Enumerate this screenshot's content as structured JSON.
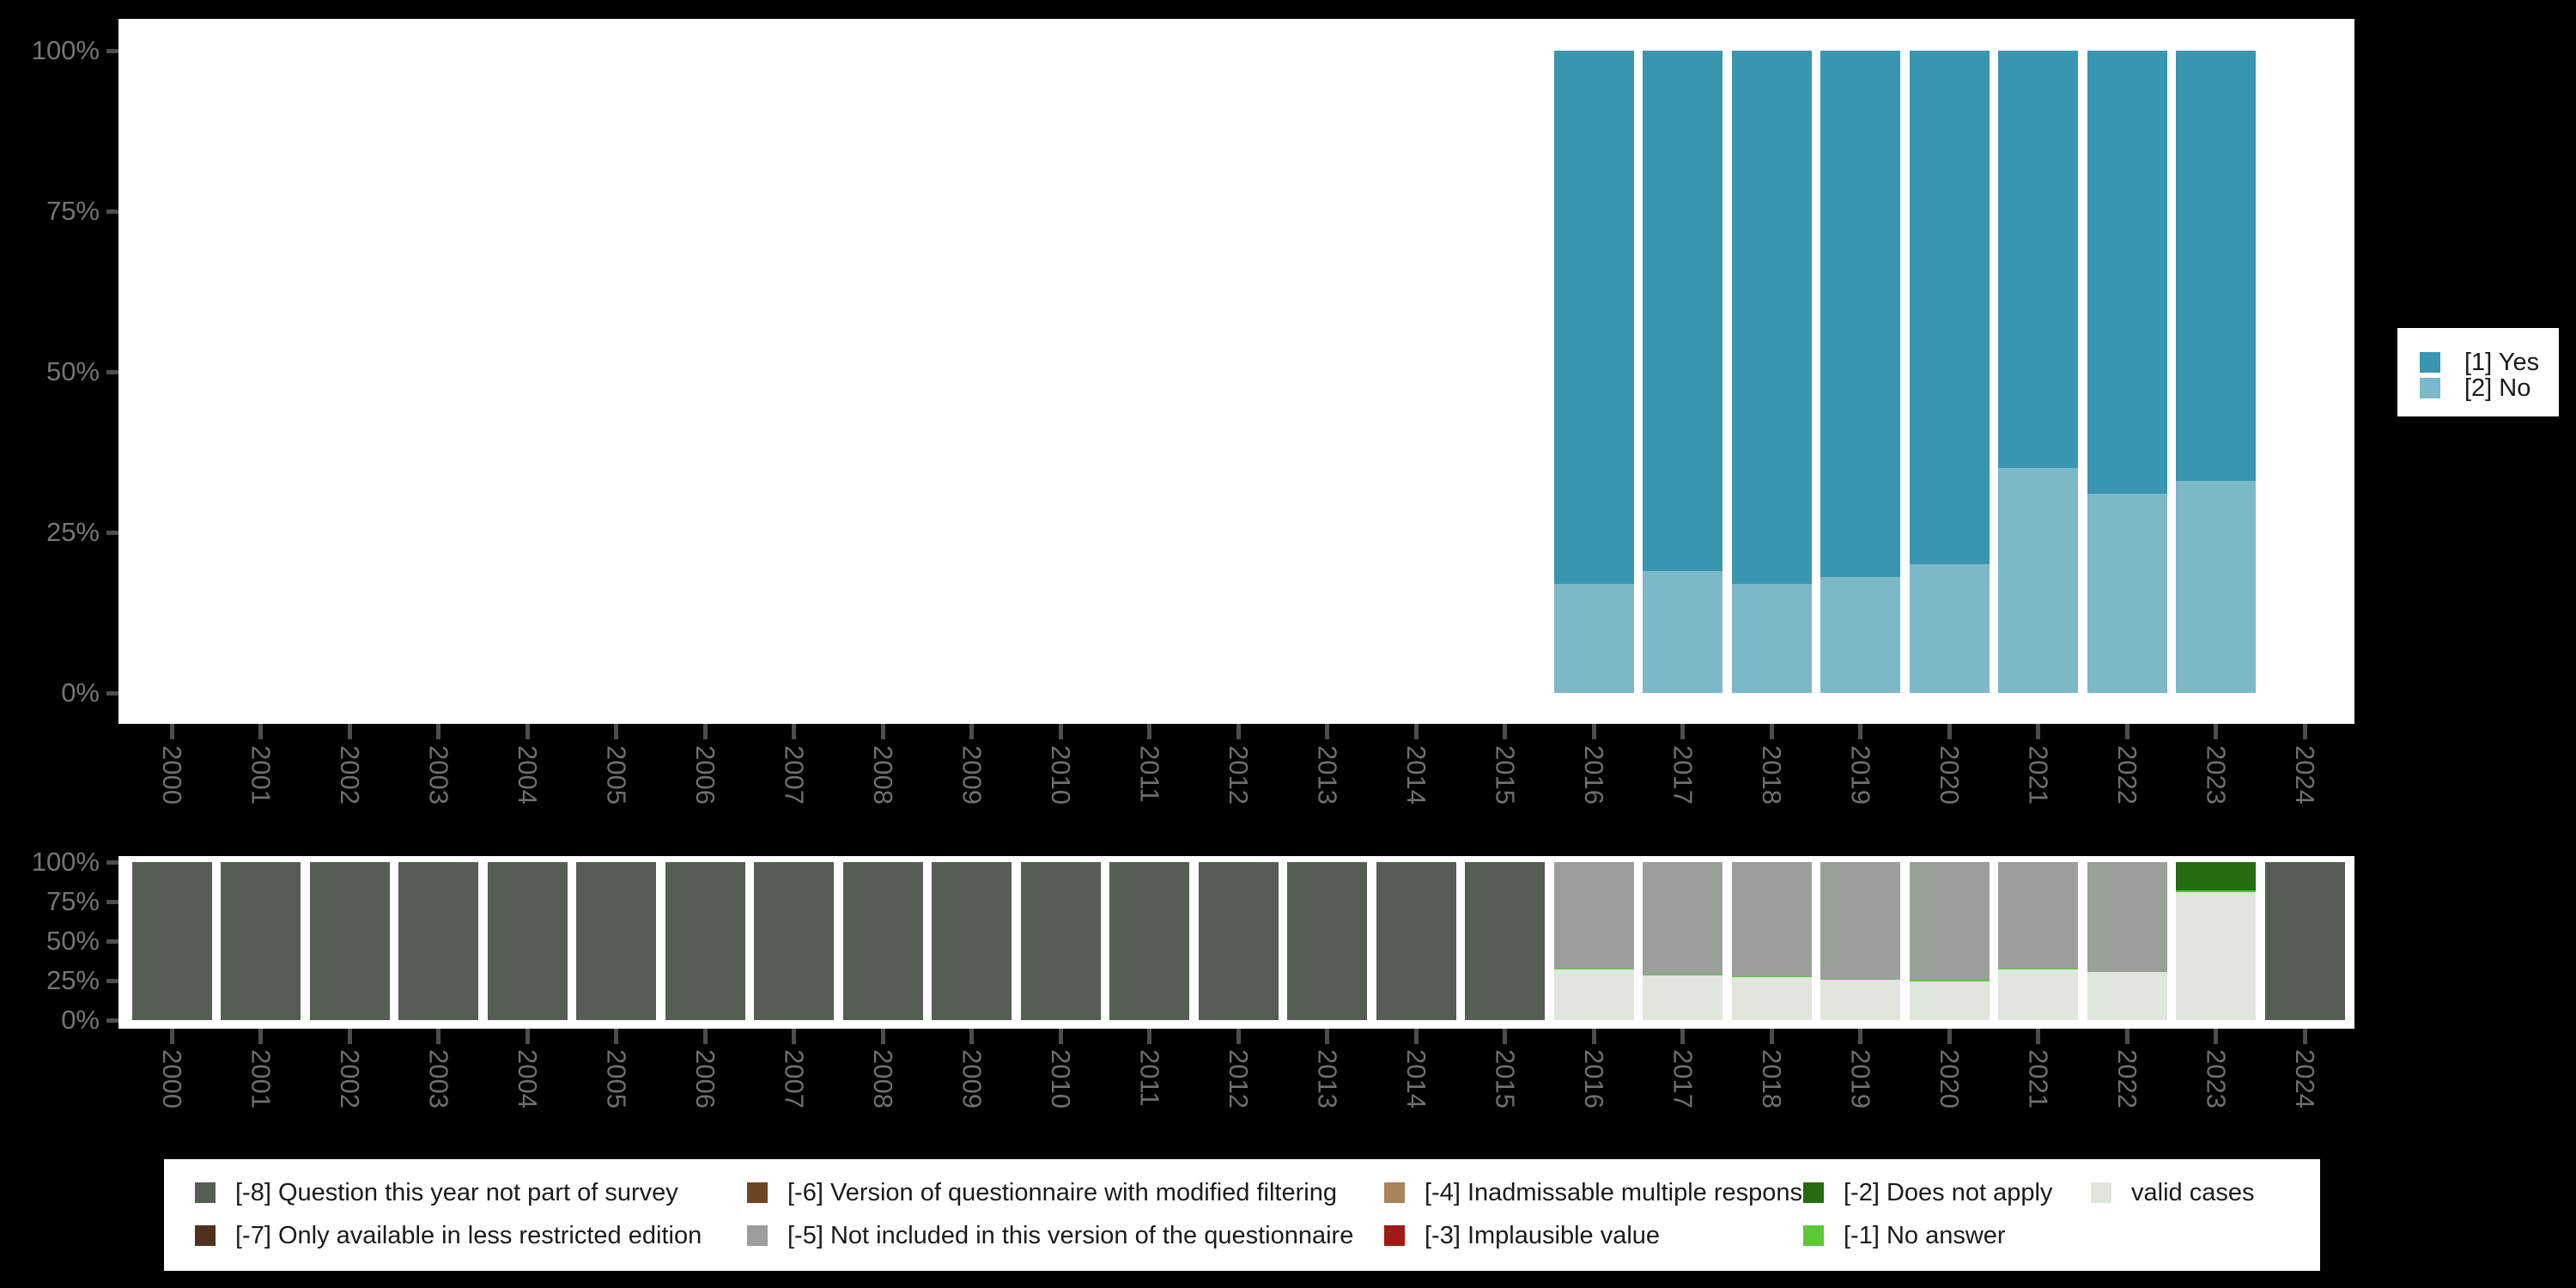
{
  "background_color": "#000000",
  "panel_color": "#ffffff",
  "axis": {
    "tick_color": "#4d4d4d",
    "y_label_color": "#757575",
    "x_label_color": "#6f6f6f"
  },
  "chart_data": [
    {
      "type": "bar",
      "stacked": true,
      "percent_axis": true,
      "title": "",
      "xlabel": "",
      "ylabel": "",
      "ylim": [
        0,
        100
      ],
      "grid": false,
      "legend_position": "right",
      "categories": [
        "2000",
        "2001",
        "2002",
        "2003",
        "2004",
        "2005",
        "2006",
        "2007",
        "2008",
        "2009",
        "2010",
        "2011",
        "2012",
        "2013",
        "2014",
        "2015",
        "2016",
        "2017",
        "2018",
        "2019",
        "2020",
        "2021",
        "2022",
        "2023",
        "2024"
      ],
      "y_ticks": [
        {
          "label": "0%",
          "value": 0
        },
        {
          "label": "25%",
          "value": 25
        },
        {
          "label": "50%",
          "value": 50
        },
        {
          "label": "75%",
          "value": 75
        },
        {
          "label": "100%",
          "value": 100
        }
      ],
      "series": [
        {
          "name": "[2] No",
          "color": "#7cb8c8",
          "values": [
            null,
            null,
            null,
            null,
            null,
            null,
            null,
            null,
            null,
            null,
            null,
            null,
            null,
            null,
            null,
            null,
            17,
            19,
            17,
            18,
            20,
            35,
            31,
            33,
            null
          ]
        },
        {
          "name": "[1] Yes",
          "color": "#3896b1",
          "values": [
            null,
            null,
            null,
            null,
            null,
            null,
            null,
            null,
            null,
            null,
            null,
            null,
            null,
            null,
            null,
            null,
            83,
            81,
            83,
            82,
            80,
            65,
            69,
            67,
            null
          ]
        }
      ]
    },
    {
      "type": "bar",
      "stacked": true,
      "percent_axis": true,
      "title": "",
      "xlabel": "",
      "ylabel": "",
      "ylim": [
        0,
        100
      ],
      "grid": false,
      "legend_position": "bottom",
      "categories": [
        "2000",
        "2001",
        "2002",
        "2003",
        "2004",
        "2005",
        "2006",
        "2007",
        "2008",
        "2009",
        "2010",
        "2011",
        "2012",
        "2013",
        "2014",
        "2015",
        "2016",
        "2017",
        "2018",
        "2019",
        "2020",
        "2021",
        "2022",
        "2023",
        "2024"
      ],
      "y_ticks": [
        {
          "label": "0%",
          "value": 0
        },
        {
          "label": "25%",
          "value": 25
        },
        {
          "label": "50%",
          "value": 50
        },
        {
          "label": "75%",
          "value": 75
        },
        {
          "label": "100%",
          "value": 100
        }
      ],
      "series": [
        {
          "name": "valid cases",
          "color": "#e0e5de",
          "values": [
            0,
            0,
            0,
            0,
            0,
            0,
            0,
            0,
            0,
            0,
            0,
            0,
            0,
            0,
            0,
            0,
            32,
            28.5,
            27,
            25.5,
            24.5,
            32,
            30.5,
            81,
            0
          ]
        },
        {
          "name": "[-1] No answer",
          "color": "#5cc838",
          "values": [
            0,
            0,
            0,
            0,
            0,
            0,
            0,
            0,
            0,
            0,
            0,
            0,
            0,
            0,
            0,
            0,
            0.5,
            0.5,
            0.5,
            0.5,
            1,
            0.5,
            0,
            1,
            0
          ]
        },
        {
          "name": "[-2] Does not apply",
          "color": "#236c10",
          "values": [
            0,
            0,
            0,
            0,
            0,
            0,
            0,
            0,
            0,
            0,
            0,
            0,
            0,
            0,
            0,
            0,
            0,
            0,
            0,
            0,
            0,
            0,
            0,
            18,
            0
          ]
        },
        {
          "name": "[-5] Not included in this version of the questionnaire",
          "color": "#9aa099",
          "values": [
            0,
            0,
            0,
            0,
            0,
            0,
            0,
            0,
            0,
            0,
            0,
            0,
            0,
            0,
            0,
            0,
            67.5,
            71,
            72.5,
            74,
            74.5,
            67.5,
            69.5,
            0,
            0
          ]
        },
        {
          "name": "[-8] Question this year not part of survey",
          "color": "#565d55",
          "values": [
            100,
            100,
            100,
            100,
            100,
            100,
            100,
            100,
            100,
            100,
            100,
            100,
            100,
            100,
            100,
            100,
            0,
            0,
            0,
            0,
            0,
            0,
            0,
            0,
            100
          ]
        }
      ]
    }
  ],
  "legend_top": {
    "items": [
      {
        "label": "[1] Yes",
        "color": "#3896b1"
      },
      {
        "label": "[2] No",
        "color": "#7cb8c8"
      }
    ]
  },
  "legend_bottom": {
    "columns": [
      [
        {
          "label": "[-8] Question this year not part of survey",
          "color": "#565d55"
        },
        {
          "label": "[-7] Only available in less restricted edition",
          "color": "#4d331f"
        }
      ],
      [
        {
          "label": "[-6] Version of questionnaire with modified filtering",
          "color": "#6e4523"
        },
        {
          "label": "[-5] Not included in this version of the questionnaire",
          "color": "#9aa099"
        }
      ],
      [
        {
          "label": "[-4] Inadmissable multiple response",
          "color": "#a8825a"
        },
        {
          "label": "[-3] Implausible value",
          "color": "#9e1c15"
        }
      ],
      [
        {
          "label": "[-2] Does not apply",
          "color": "#236c10"
        },
        {
          "label": "[-1] No answer",
          "color": "#5cc838"
        }
      ],
      [
        {
          "label": "valid cases",
          "color": "#e0e5de"
        }
      ]
    ]
  }
}
